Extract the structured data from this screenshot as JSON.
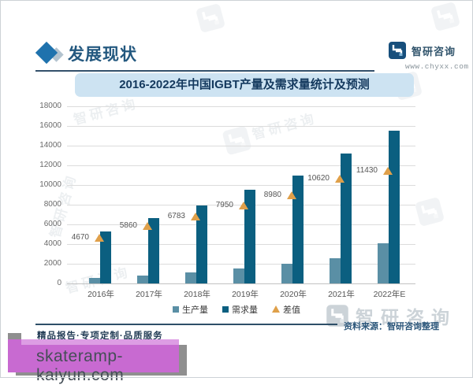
{
  "header": {
    "section_title": "发展现状",
    "brand": {
      "name": "智研咨询",
      "url": "www.chyxx.com"
    }
  },
  "chart": {
    "title": "2016-2022年中国IGBT产量及需求量统计及预测"
  },
  "chart_data": {
    "type": "bar",
    "title": "2016-2022年中国IGBT产量及需求量统计及预测",
    "categories": [
      "2016年",
      "2017年",
      "2018年",
      "2019年",
      "2020年",
      "2021年",
      "2022年E"
    ],
    "series": [
      {
        "name": "生产量",
        "marker": "square",
        "color": "#5a8fa5",
        "values": [
          600,
          820,
          1150,
          1550,
          2000,
          2580,
          4100
        ]
      },
      {
        "name": "需求量",
        "marker": "square",
        "color": "#0b5f80",
        "values": [
          5270,
          6680,
          7933,
          9500,
          10980,
          13200,
          15530
        ]
      },
      {
        "name": "差值",
        "marker": "triangle",
        "color": "#dfa04a",
        "values": [
          4670,
          5860,
          6783,
          7950,
          8980,
          10620,
          11430
        ]
      }
    ],
    "value_labels": [
      "4670",
      "5860",
      "6783",
      "7950",
      "8980",
      "10620",
      "11430"
    ],
    "value_labels_series": "差值",
    "xlabel": "",
    "ylabel": "",
    "ylim": [
      0,
      18000
    ],
    "ytick_step": 2000,
    "grid": true,
    "legend_position": "bottom"
  },
  "footer": {
    "source": "资料来源：智研咨询整理",
    "tagline": "精品报告·专项定制·品质服务"
  },
  "overlay": {
    "site": "skateramp-kaiyun.com"
  },
  "watermark": {
    "text": "智研咨询"
  },
  "colors": {
    "accent_blue": "#1f72ad",
    "header_text": "#23587f",
    "banner_bg": "#cde3f2",
    "banner_text": "#14395e",
    "bar_production": "#5a8fa5",
    "bar_demand": "#0b5f80",
    "marker_difference": "#dfa04a",
    "overlay_pink": "#c86ad1",
    "footer_text": "#223c55",
    "source_text": "#2b567a"
  }
}
